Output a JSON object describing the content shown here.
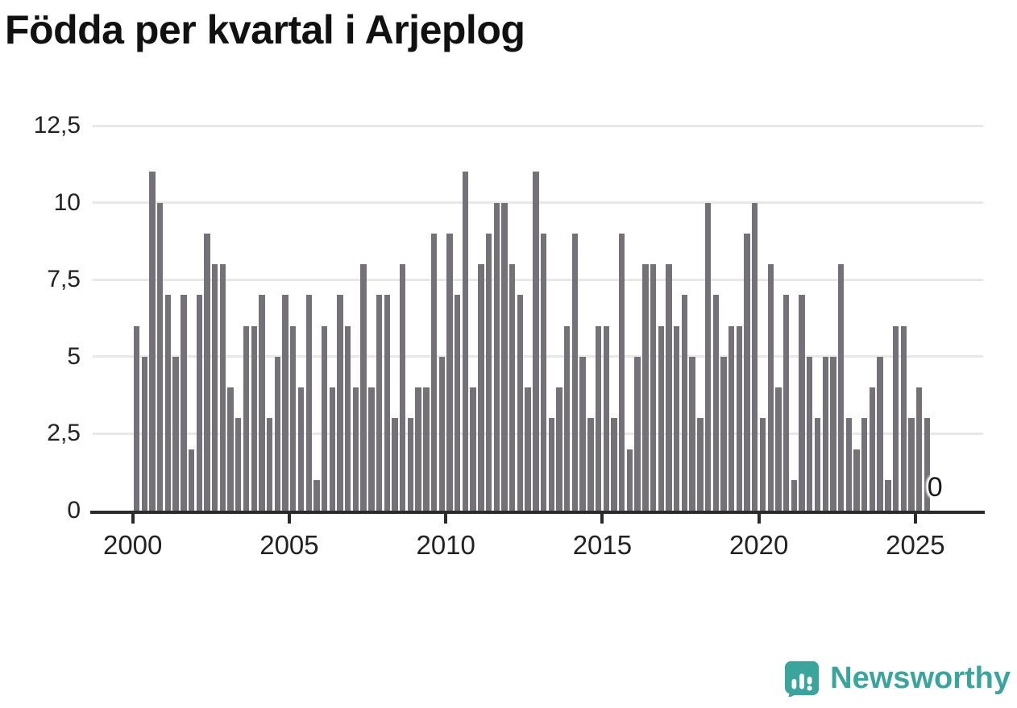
{
  "title": "Födda per kvartal i Arjeplog",
  "chart_data": {
    "type": "bar",
    "title": "Födda per kvartal i Arjeplog",
    "x_unit": "quarter",
    "start_period": "2000 Q1",
    "end_period": "2025 Q3",
    "values": [
      6,
      5,
      11,
      10,
      7,
      5,
      7,
      2,
      7,
      9,
      8,
      8,
      4,
      3,
      6,
      6,
      7,
      3,
      5,
      7,
      6,
      4,
      7,
      1,
      6,
      4,
      7,
      6,
      4,
      8,
      4,
      7,
      7,
      3,
      8,
      3,
      4,
      4,
      9,
      5,
      9,
      7,
      11,
      4,
      8,
      9,
      10,
      10,
      8,
      7,
      4,
      11,
      9,
      3,
      4,
      6,
      9,
      5,
      3,
      6,
      6,
      3,
      9,
      2,
      5,
      8,
      8,
      6,
      8,
      6,
      7,
      5,
      3,
      10,
      7,
      5,
      6,
      6,
      9,
      10,
      3,
      8,
      4,
      7,
      1,
      7,
      5,
      3,
      5,
      5,
      8,
      3,
      2,
      3,
      4,
      5,
      1,
      6,
      6,
      3,
      4,
      3,
      0
    ],
    "start_year": 2000,
    "x_tick_labels": [
      "2000",
      "2005",
      "2010",
      "2015",
      "2020",
      "2025"
    ],
    "x_tick_years": [
      2000,
      2005,
      2010,
      2015,
      2020,
      2025
    ],
    "y_tick_labels": [
      "0",
      "2,5",
      "5",
      "7,5",
      "10",
      "12,5"
    ],
    "y_tick_values": [
      0,
      2.5,
      5,
      7.5,
      10,
      12.5
    ],
    "y_max": 12.5,
    "grid": true,
    "legend": "none",
    "last_point_label": "0",
    "bar_color": "#757179",
    "axis_color": "#2b2b2b",
    "grid_color": "#e8e8e8",
    "label_color": "#222222"
  },
  "branding": {
    "name": "Newsworthy",
    "color": "#3BA49C",
    "icon": "newsworthy-logo"
  }
}
